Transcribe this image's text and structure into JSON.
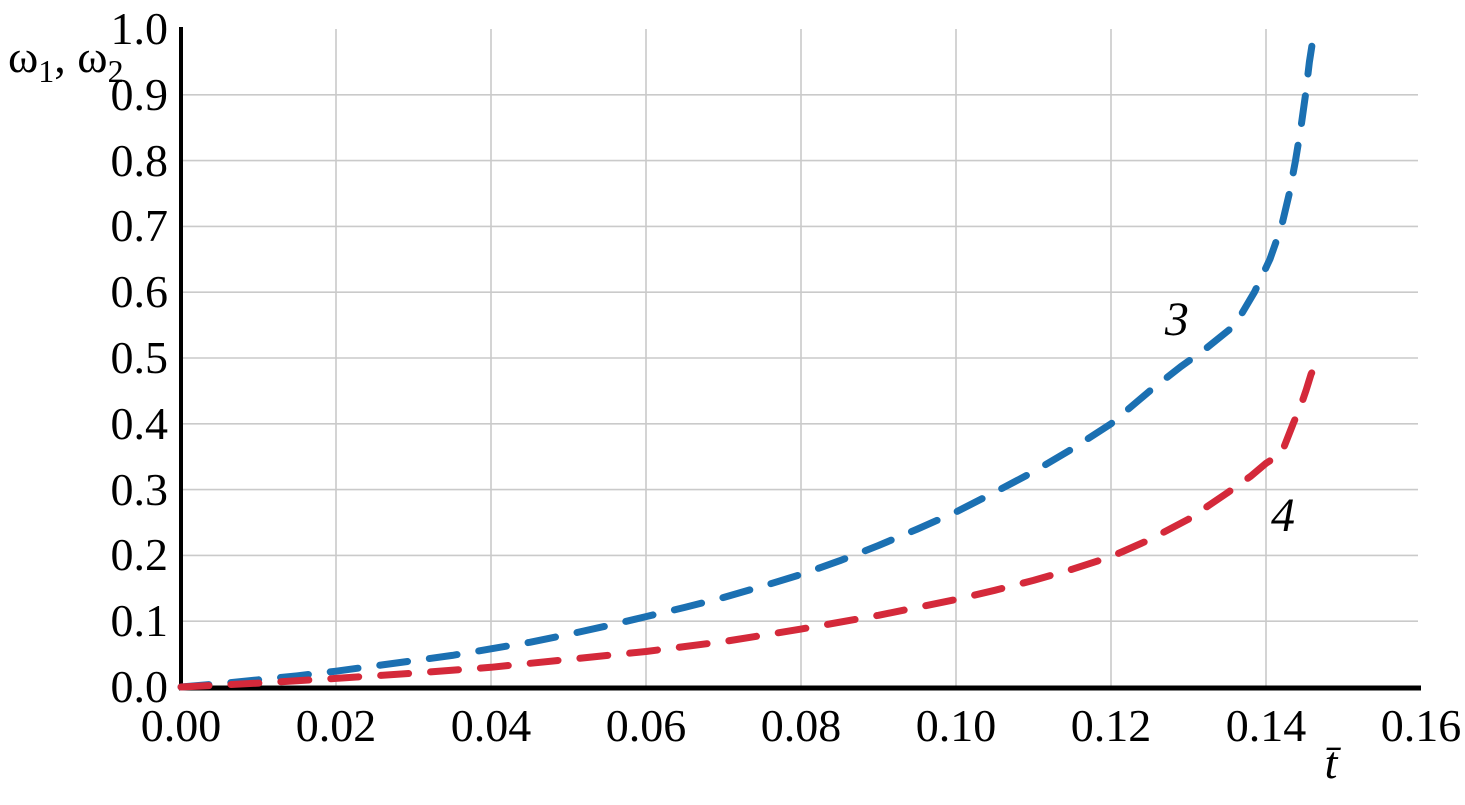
{
  "figure": {
    "ylabel_parts": {
      "omega1": "ω",
      "sub1": "1",
      "sep": ", ",
      "omega2": "ω",
      "sub2": "2"
    },
    "xlabel": "t̄"
  },
  "colors": {
    "background": "#ffffff",
    "axis": "#000000",
    "grid": "#cacaca",
    "text": "#000000",
    "curve3": "#1b70b2",
    "curve4": "#d4293a"
  },
  "chart_data": {
    "type": "line",
    "title": "",
    "xlabel": "t̄",
    "ylabel": "ω1, ω2",
    "xlim": [
      0,
      0.16
    ],
    "ylim": [
      0,
      1.0
    ],
    "grid": true,
    "legend_position": "none (curves labeled inline with italic numbers)",
    "xticks": [
      {
        "v": 0.0,
        "label": "0.00"
      },
      {
        "v": 0.02,
        "label": "0.02"
      },
      {
        "v": 0.04,
        "label": "0.04"
      },
      {
        "v": 0.06,
        "label": "0.06"
      },
      {
        "v": 0.08,
        "label": "0.08"
      },
      {
        "v": 0.1,
        "label": "0.10"
      },
      {
        "v": 0.12,
        "label": "0.12"
      },
      {
        "v": 0.14,
        "label": "0.14"
      },
      {
        "v": 0.16,
        "label": "0.16"
      }
    ],
    "yticks": [
      {
        "v": 0.0,
        "label": "0.0"
      },
      {
        "v": 0.1,
        "label": "0.1"
      },
      {
        "v": 0.2,
        "label": "0.2"
      },
      {
        "v": 0.3,
        "label": "0.3"
      },
      {
        "v": 0.4,
        "label": "0.4"
      },
      {
        "v": 0.5,
        "label": "0.5"
      },
      {
        "v": 0.6,
        "label": "0.6"
      },
      {
        "v": 0.7,
        "label": "0.7"
      },
      {
        "v": 0.8,
        "label": "0.8"
      },
      {
        "v": 0.9,
        "label": "0.9"
      },
      {
        "v": 1.0,
        "label": "1.0"
      }
    ],
    "x_gridlines": [
      0.02,
      0.04,
      0.06,
      0.08,
      0.1,
      0.12,
      0.14
    ],
    "y_gridlines": [
      0.1,
      0.2,
      0.3,
      0.4,
      0.5,
      0.6,
      0.7,
      0.8,
      0.9
    ],
    "series": [
      {
        "name": "3",
        "variable": "ω1",
        "color": "#1b70b2",
        "line_style": "dashed",
        "points": [
          [
            0.0,
            0.0
          ],
          [
            0.005,
            0.005
          ],
          [
            0.01,
            0.011
          ],
          [
            0.015,
            0.017
          ],
          [
            0.02,
            0.024
          ],
          [
            0.025,
            0.032
          ],
          [
            0.03,
            0.04
          ],
          [
            0.035,
            0.048
          ],
          [
            0.04,
            0.058
          ],
          [
            0.045,
            0.068
          ],
          [
            0.05,
            0.08
          ],
          [
            0.055,
            0.093
          ],
          [
            0.06,
            0.107
          ],
          [
            0.065,
            0.121
          ],
          [
            0.07,
            0.136
          ],
          [
            0.075,
            0.153
          ],
          [
            0.08,
            0.171
          ],
          [
            0.085,
            0.192
          ],
          [
            0.09,
            0.215
          ],
          [
            0.095,
            0.24
          ],
          [
            0.1,
            0.266
          ],
          [
            0.105,
            0.296
          ],
          [
            0.11,
            0.327
          ],
          [
            0.115,
            0.362
          ],
          [
            0.12,
            0.4
          ],
          [
            0.125,
            0.45
          ],
          [
            0.129,
            0.487
          ],
          [
            0.132,
            0.512
          ],
          [
            0.136,
            0.55
          ],
          [
            0.1385,
            0.6
          ],
          [
            0.1405,
            0.65
          ],
          [
            0.142,
            0.7
          ],
          [
            0.143,
            0.75
          ],
          [
            0.1438,
            0.8
          ],
          [
            0.1445,
            0.85
          ],
          [
            0.1451,
            0.9
          ],
          [
            0.1456,
            0.95
          ],
          [
            0.1461,
            0.988
          ]
        ]
      },
      {
        "name": "4",
        "variable": "ω2",
        "color": "#d4293a",
        "line_style": "dashed",
        "points": [
          [
            0.0,
            0.0
          ],
          [
            0.01,
            0.006
          ],
          [
            0.02,
            0.013
          ],
          [
            0.03,
            0.021
          ],
          [
            0.04,
            0.03
          ],
          [
            0.05,
            0.042
          ],
          [
            0.06,
            0.054
          ],
          [
            0.07,
            0.069
          ],
          [
            0.08,
            0.088
          ],
          [
            0.09,
            0.109
          ],
          [
            0.1,
            0.133
          ],
          [
            0.105,
            0.147
          ],
          [
            0.11,
            0.162
          ],
          [
            0.115,
            0.179
          ],
          [
            0.12,
            0.198
          ],
          [
            0.125,
            0.224
          ],
          [
            0.13,
            0.255
          ],
          [
            0.135,
            0.295
          ],
          [
            0.138,
            0.32
          ],
          [
            0.14,
            0.34
          ],
          [
            0.142,
            0.355
          ],
          [
            0.1435,
            0.4
          ],
          [
            0.1445,
            0.428
          ],
          [
            0.1452,
            0.452
          ],
          [
            0.1458,
            0.475
          ],
          [
            0.1464,
            0.49
          ],
          [
            0.1468,
            0.497
          ]
        ]
      }
    ],
    "annotations": [
      {
        "text": "3",
        "t": 0.1285,
        "w": 0.558
      },
      {
        "text": "4",
        "t": 0.1422,
        "w": 0.26
      }
    ]
  }
}
